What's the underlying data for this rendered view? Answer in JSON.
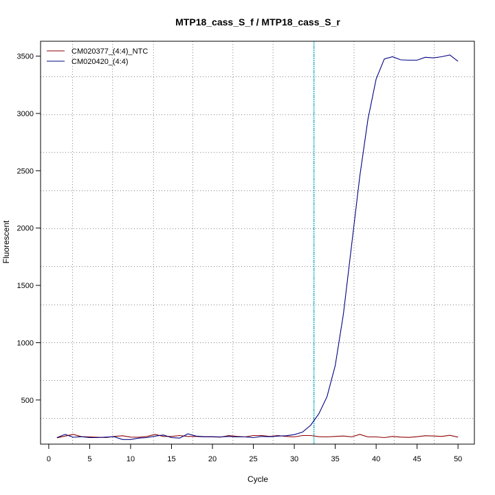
{
  "chart_data": {
    "type": "line",
    "title": "MTP18_cass_S_f / MTP18_cass_S_r",
    "xlabel": "Cycle",
    "ylabel": "Fluorescent",
    "xlim": [
      -1,
      52
    ],
    "ylim": [
      115,
      3630
    ],
    "xticks": [
      0,
      5,
      10,
      15,
      20,
      25,
      30,
      35,
      40,
      45,
      50
    ],
    "yticks": [
      500,
      1000,
      1500,
      2000,
      2500,
      3000,
      3500
    ],
    "grid": true,
    "grid_x": [
      2.9,
      7.8,
      12.8,
      17.6,
      22.5,
      27.4,
      32.4,
      37.3,
      42.2,
      47.1
    ],
    "grid_y": [
      340,
      670,
      1000,
      1330,
      1665,
      1995,
      2325,
      2660,
      2990,
      3320
    ],
    "threshold_cycle": 32.4,
    "threshold_color": "#17becf",
    "legend_position": "top-left",
    "series": [
      {
        "name": "CM020377_(4:4)_NTC",
        "color": "#8b0000",
        "x": [
          1,
          2,
          3,
          4,
          5,
          6,
          7,
          8,
          9,
          10,
          11,
          12,
          13,
          14,
          15,
          16,
          17,
          18,
          19,
          20,
          21,
          22,
          23,
          24,
          25,
          26,
          27,
          28,
          29,
          30,
          31,
          32,
          33,
          34,
          35,
          36,
          37,
          38,
          39,
          40,
          41,
          42,
          43,
          44,
          45,
          46,
          47,
          48,
          49,
          50
        ],
        "values": [
          170,
          185,
          200,
          180,
          178,
          175,
          172,
          182,
          188,
          176,
          175,
          182,
          200,
          182,
          182,
          190,
          182,
          182,
          178,
          178,
          176,
          190,
          182,
          178,
          190,
          190,
          182,
          190,
          182,
          178,
          190,
          190,
          180,
          178,
          182,
          186,
          178,
          200,
          178,
          178,
          172,
          182,
          176,
          174,
          180,
          188,
          186,
          182,
          192,
          176
        ]
      },
      {
        "name": "CM020420_(4:4)",
        "color": "#000080",
        "x": [
          1,
          2,
          3,
          4,
          5,
          6,
          7,
          8,
          9,
          10,
          11,
          12,
          13,
          14,
          15,
          16,
          17,
          18,
          19,
          20,
          21,
          22,
          23,
          24,
          25,
          26,
          27,
          28,
          29,
          30,
          31,
          32,
          33,
          34,
          35,
          36,
          37,
          38,
          39,
          40,
          41,
          42,
          43,
          44,
          45,
          46,
          47,
          48,
          49,
          50
        ],
        "values": [
          172,
          200,
          175,
          180,
          172,
          172,
          176,
          180,
          155,
          155,
          168,
          172,
          185,
          195,
          172,
          168,
          205,
          185,
          180,
          180,
          178,
          182,
          178,
          178,
          172,
          182,
          180,
          185,
          188,
          198,
          220,
          280,
          380,
          530,
          800,
          1250,
          1850,
          2450,
          2950,
          3300,
          3475,
          3495,
          3468,
          3465,
          3465,
          3490,
          3485,
          3495,
          3510,
          3455
        ]
      }
    ]
  }
}
